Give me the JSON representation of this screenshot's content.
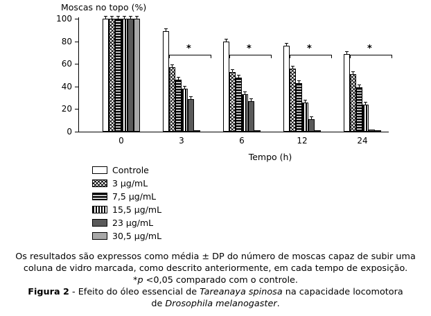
{
  "chart_data": {
    "type": "bar",
    "title": "Moscas no topo (%)",
    "xlabel": "Tempo (h)",
    "ylabel": "",
    "ylim": [
      0,
      100
    ],
    "yticks": [
      0,
      20,
      40,
      60,
      80,
      100
    ],
    "categories": [
      "0",
      "3",
      "6",
      "12",
      "24"
    ],
    "series": [
      {
        "name": "Controle",
        "pattern": "white",
        "values": [
          100,
          89,
          80,
          76,
          69
        ]
      },
      {
        "name": "3 µg/mL",
        "pattern": "checker",
        "values": [
          100,
          57,
          53,
          56,
          51
        ]
      },
      {
        "name": "7,5 µg/mL",
        "pattern": "hlines",
        "values": [
          100,
          46,
          48,
          43,
          39
        ]
      },
      {
        "name": "15,5 µg/mL",
        "pattern": "vlines",
        "values": [
          100,
          38,
          33,
          26,
          24
        ]
      },
      {
        "name": "23 µg/mL",
        "pattern": "darkgray",
        "values": [
          100,
          29,
          27,
          11,
          2
        ]
      },
      {
        "name": "30,5 µg/mL",
        "pattern": "lightgray",
        "values": [
          100,
          1,
          1,
          1,
          1
        ]
      }
    ],
    "error_bar": 2,
    "significance": {
      "symbol": "*",
      "groups": [
        "3",
        "6",
        "12",
        "24"
      ]
    },
    "legend_position": "bottom-left",
    "grid": false,
    "bar_border_color": "#000000",
    "dark_gray": "#5a5a5a",
    "light_gray": "#a8a8a8"
  },
  "caption": {
    "lines": [
      {
        "runs": [
          {
            "t": "Os resultados são expressos como média ± DP do número de moscas capaz de subir uma"
          }
        ]
      },
      {
        "runs": [
          {
            "t": "coluna de vidro marcada, como descrito anteriormente, em cada tempo de exposição."
          }
        ]
      },
      {
        "runs": [
          {
            "t": "*"
          },
          {
            "t": "p",
            "i": true
          },
          {
            "t": " <0,05 comparado com o controle."
          }
        ]
      },
      {
        "runs": [
          {
            "t": "Figura 2",
            "b": true
          },
          {
            "t": " - Efeito do óleo essencial de "
          },
          {
            "t": "Tareanaya spinosa",
            "i": true
          },
          {
            "t": " na capacidade locomotora"
          }
        ]
      },
      {
        "runs": [
          {
            "t": "de "
          },
          {
            "t": "Drosophila melanogaster",
            "i": true
          },
          {
            "t": "."
          }
        ]
      }
    ]
  }
}
